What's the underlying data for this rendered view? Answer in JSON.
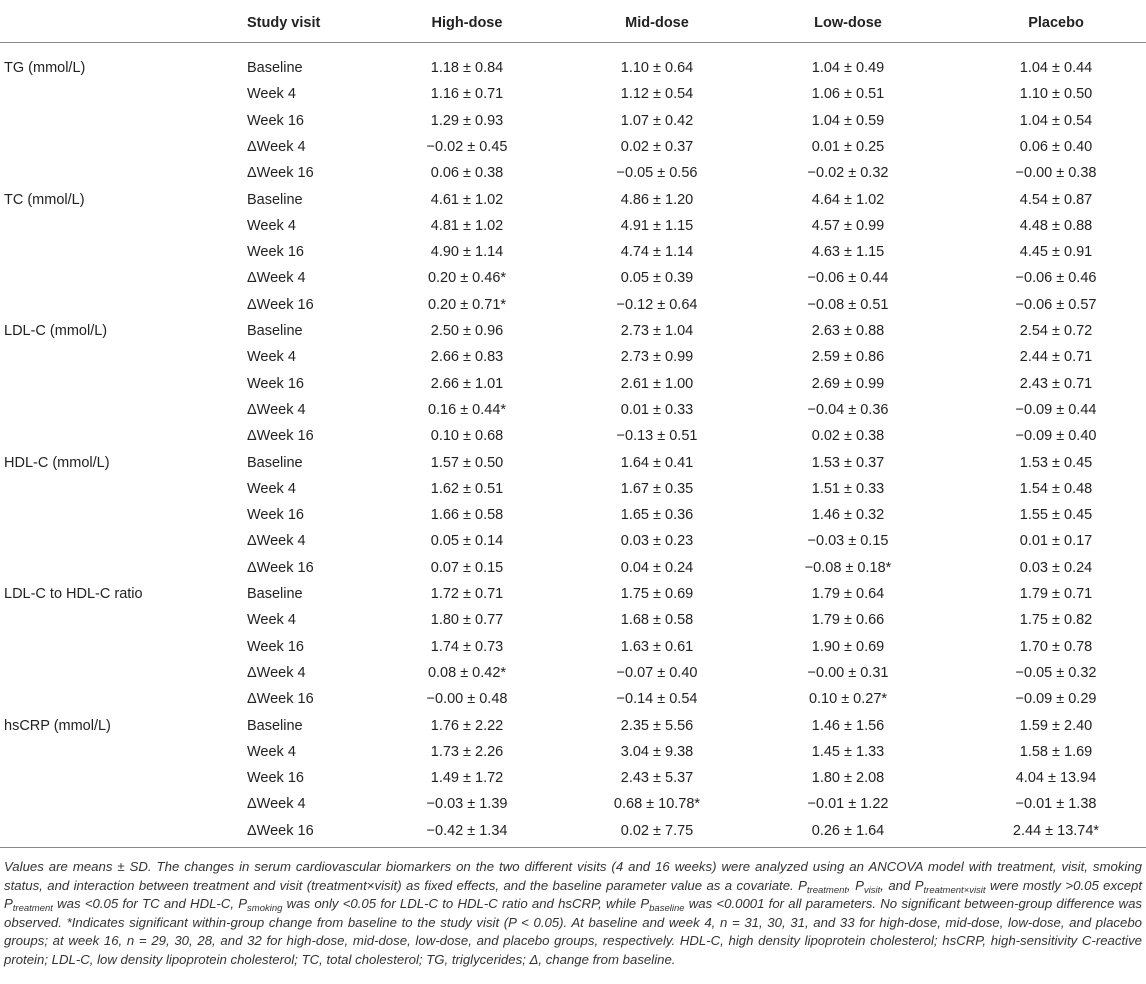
{
  "table": {
    "header": [
      "Study visit",
      "High-dose",
      "Mid-dose",
      "Low-dose",
      "Placebo"
    ],
    "groups": [
      {
        "name": "TG (mmol/L)",
        "rows": [
          [
            "Baseline",
            "1.18 ± 0.84",
            "1.10 ± 0.64",
            "1.04 ± 0.49",
            "1.04 ± 0.44"
          ],
          [
            "Week 4",
            "1.16 ± 0.71",
            "1.12 ± 0.54",
            "1.06 ± 0.51",
            "1.10 ± 0.50"
          ],
          [
            "Week 16",
            "1.29 ± 0.93",
            "1.07 ± 0.42",
            "1.04 ± 0.59",
            "1.04 ± 0.54"
          ],
          [
            "ΔWeek 4",
            "−0.02 ± 0.45",
            "0.02 ± 0.37",
            "0.01 ± 0.25",
            "0.06 ± 0.40"
          ],
          [
            "ΔWeek 16",
            "0.06 ± 0.38",
            "−0.05 ± 0.56",
            "−0.02 ± 0.32",
            "−0.00 ± 0.38"
          ]
        ]
      },
      {
        "name": "TC (mmol/L)",
        "rows": [
          [
            "Baseline",
            "4.61 ± 1.02",
            "4.86 ± 1.20",
            "4.64 ± 1.02",
            "4.54 ± 0.87"
          ],
          [
            "Week 4",
            "4.81 ± 1.02",
            "4.91 ± 1.15",
            "4.57 ± 0.99",
            "4.48 ± 0.88"
          ],
          [
            "Week 16",
            "4.90 ± 1.14",
            "4.74 ± 1.14",
            "4.63 ± 1.15",
            "4.45 ± 0.91"
          ],
          [
            "ΔWeek 4",
            "0.20 ± 0.46*",
            "0.05 ± 0.39",
            "−0.06 ± 0.44",
            "−0.06 ± 0.46"
          ],
          [
            "ΔWeek 16",
            "0.20 ± 0.71*",
            "−0.12 ± 0.64",
            "−0.08 ± 0.51",
            "−0.06 ± 0.57"
          ]
        ]
      },
      {
        "name": "LDL-C (mmol/L)",
        "rows": [
          [
            "Baseline",
            "2.50 ± 0.96",
            "2.73 ± 1.04",
            "2.63 ± 0.88",
            "2.54 ± 0.72"
          ],
          [
            "Week 4",
            "2.66 ± 0.83",
            "2.73 ± 0.99",
            "2.59 ± 0.86",
            "2.44 ± 0.71"
          ],
          [
            "Week 16",
            "2.66 ± 1.01",
            "2.61 ± 1.00",
            "2.69 ± 0.99",
            "2.43 ± 0.71"
          ],
          [
            "ΔWeek 4",
            "0.16 ± 0.44*",
            "0.01 ± 0.33",
            "−0.04 ± 0.36",
            "−0.09 ± 0.44"
          ],
          [
            "ΔWeek 16",
            "0.10 ± 0.68",
            "−0.13 ± 0.51",
            "0.02 ± 0.38",
            "−0.09 ± 0.40"
          ]
        ]
      },
      {
        "name": "HDL-C (mmol/L)",
        "rows": [
          [
            "Baseline",
            "1.57 ± 0.50",
            "1.64 ± 0.41",
            "1.53 ± 0.37",
            "1.53 ± 0.45"
          ],
          [
            "Week 4",
            "1.62 ± 0.51",
            "1.67 ± 0.35",
            "1.51 ± 0.33",
            "1.54 ± 0.48"
          ],
          [
            "Week 16",
            "1.66 ± 0.58",
            "1.65 ± 0.36",
            "1.46 ± 0.32",
            "1.55 ± 0.45"
          ],
          [
            "ΔWeek 4",
            "0.05 ± 0.14",
            "0.03 ± 0.23",
            "−0.03 ± 0.15",
            "0.01 ± 0.17"
          ],
          [
            "ΔWeek 16",
            "0.07 ± 0.15",
            "0.04 ± 0.24",
            "−0.08 ± 0.18*",
            "0.03 ± 0.24"
          ]
        ]
      },
      {
        "name": "LDL-C to HDL-C ratio",
        "rows": [
          [
            "Baseline",
            "1.72 ± 0.71",
            "1.75 ± 0.69",
            "1.79 ± 0.64",
            "1.79 ± 0.71"
          ],
          [
            "Week 4",
            "1.80 ± 0.77",
            "1.68 ± 0.58",
            "1.79 ± 0.66",
            "1.75 ± 0.82"
          ],
          [
            "Week 16",
            "1.74 ± 0.73",
            "1.63 ± 0.61",
            "1.90 ± 0.69",
            "1.70 ± 0.78"
          ],
          [
            "ΔWeek 4",
            "0.08 ± 0.42*",
            "−0.07 ± 0.40",
            "−0.00 ± 0.31",
            "−0.05 ± 0.32"
          ],
          [
            "ΔWeek 16",
            "−0.00 ± 0.48",
            "−0.14 ± 0.54",
            "0.10 ± 0.27*",
            "−0.09 ± 0.29"
          ]
        ]
      },
      {
        "name": "hsCRP (mmol/L)",
        "rows": [
          [
            "Baseline",
            "1.76 ± 2.22",
            "2.35 ± 5.56",
            "1.46 ± 1.56",
            "1.59 ± 2.40"
          ],
          [
            "Week 4",
            "1.73 ± 2.26",
            "3.04 ± 9.38",
            "1.45 ± 1.33",
            "1.58 ± 1.69"
          ],
          [
            "Week 16",
            "1.49 ± 1.72",
            "2.43 ± 5.37",
            "1.80 ± 2.08",
            "4.04 ± 13.94"
          ],
          [
            "ΔWeek 4",
            "−0.03 ± 1.39",
            "0.68 ± 10.78*",
            "−0.01 ± 1.22",
            "−0.01 ± 1.38"
          ],
          [
            "ΔWeek 16",
            "−0.42 ± 1.34",
            "0.02 ± 7.75",
            "0.26 ± 1.64",
            "2.44 ± 13.74*"
          ]
        ]
      }
    ],
    "footnote": [
      "Values are means ± SD. The changes in serum cardiovascular biomarkers on the two different visits (4 and 16 weeks) were analyzed using an ANCOVA model with treatment, visit, smoking status, and interaction between treatment and visit (treatment×visit) as fixed effects, and the baseline parameter value as a covariate. P",
      "treatment",
      ", P",
      "visit",
      ", and P",
      "treatment×visit",
      " were mostly >0.05 except P",
      "treatment",
      " was <0.05 for TC and HDL-C, P",
      "smoking",
      " was only <0.05 for LDL-C to HDL-C ratio and hsCRP, while P",
      "baseline",
      " was <0.0001 for all parameters. No significant between-group difference was observed. *Indicates significant within-group change from baseline to the study visit (P < 0.05). At baseline and week 4, n = 31, 30, 31, and 33 for high-dose, mid-dose, low-dose, and placebo groups; at week 16, n = 29, 30, 28, and 32 for high-dose, mid-dose, low-dose, and placebo groups, respectively. HDL-C, high density lipoprotein cholesterol; hsCRP, high-sensitivity C-reactive protein; LDL-C, low density lipoprotein cholesterol; TC, total cholesterol; TG, triglycerides; Δ, change from baseline."
    ]
  }
}
